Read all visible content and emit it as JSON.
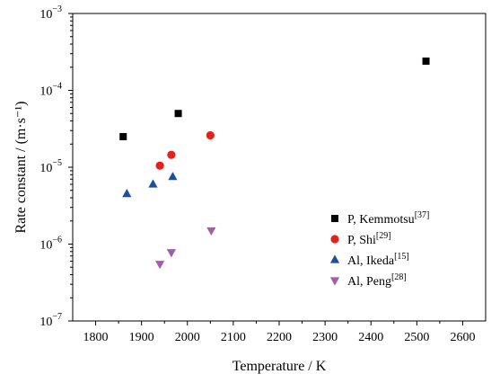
{
  "chart_data": {
    "type": "scatter",
    "title": "",
    "xlabel": "Temperature / K",
    "ylabel": "Rate constant / (m·s⁻¹)",
    "xlim": [
      1750,
      2650
    ],
    "ylim_exp": [
      -7,
      -3
    ],
    "yscale": "log",
    "xticks": [
      "1800",
      "1900",
      "2000",
      "2100",
      "2200",
      "2300",
      "2400",
      "2500",
      "2600"
    ],
    "yticks": [
      {
        "base": "10",
        "exp": "−3",
        "value_exp": -3
      },
      {
        "base": "10",
        "exp": "−4",
        "value_exp": -4
      },
      {
        "base": "10",
        "exp": "−5",
        "value_exp": -5
      },
      {
        "base": "10",
        "exp": "−6",
        "value_exp": -6
      },
      {
        "base": "10",
        "exp": "−7",
        "value_exp": -7
      }
    ],
    "legend_position": "bottom-right",
    "series": [
      {
        "name": "P, Kemmotsu",
        "ref": "[37]",
        "marker": "square",
        "color": "#000000",
        "x": [
          1860,
          1980,
          2520
        ],
        "y": [
          2.5e-05,
          5e-05,
          0.00024
        ]
      },
      {
        "name": "P, Shi",
        "ref": "[29]",
        "marker": "circle",
        "color": "#e2231a",
        "x": [
          1940,
          1965,
          2050
        ],
        "y": [
          1.05e-05,
          1.45e-05,
          2.6e-05
        ]
      },
      {
        "name": "Al, Ikeda",
        "ref": "[15]",
        "marker": "triangle-up",
        "color": "#1f4e9e",
        "x": [
          1868,
          1925,
          1968
        ],
        "y": [
          4.5e-06,
          6e-06,
          7.5e-06
        ]
      },
      {
        "name": "Al, Peng",
        "ref": "[28]",
        "marker": "triangle-down",
        "color": "#a35ca8",
        "x": [
          1940,
          1965,
          2052
        ],
        "y": [
          5.5e-07,
          7.8e-07,
          1.5e-06
        ]
      }
    ]
  }
}
